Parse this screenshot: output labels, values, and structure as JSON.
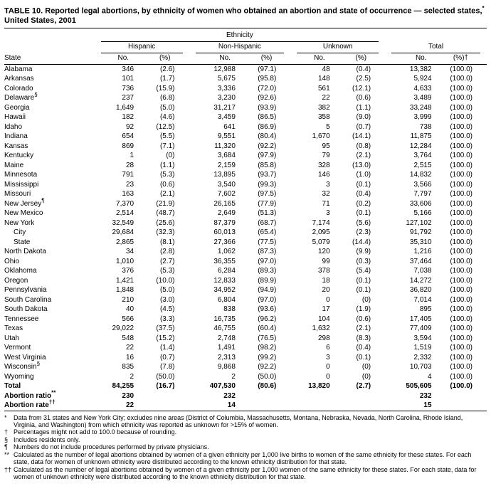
{
  "title": {
    "part1": "TABLE 10. Reported legal abortions, by ethnicity of women who obtained an abortion and state of occurrence — selected states,",
    "sup": "*",
    "part2": " United States, 2001"
  },
  "header": {
    "ethnicity_label": "Ethnicity",
    "state_label": "State",
    "groups": [
      "Hispanic",
      "Non-Hispanic",
      "Unknown",
      "Total"
    ],
    "no_label": "No.",
    "pct_label": "(%)",
    "total_pct_label": "(%)†"
  },
  "table": {
    "rows": [
      {
        "state": "Alabama",
        "cells": [
          "346",
          "(2.6)",
          "12,988",
          "(97.1)",
          "48",
          "(0.4)",
          "13,382",
          "(100.0)"
        ]
      },
      {
        "state": "Arkansas",
        "cells": [
          "101",
          "(1.7)",
          "5,675",
          "(95.8)",
          "148",
          "(2.5)",
          "5,924",
          "(100.0)"
        ]
      },
      {
        "state": "Colorado",
        "cells": [
          "736",
          "(15.9)",
          "3,336",
          "(72.0)",
          "561",
          "(12.1)",
          "4,633",
          "(100.0)"
        ]
      },
      {
        "state": "Delaware",
        "sup": "§",
        "cells": [
          "237",
          "(6.8)",
          "3,230",
          "(92.6)",
          "22",
          "(0.6)",
          "3,489",
          "(100.0)"
        ]
      },
      {
        "state": "Georgia",
        "cells": [
          "1,649",
          "(5.0)",
          "31,217",
          "(93.9)",
          "382",
          "(1.1)",
          "33,248",
          "(100.0)"
        ]
      },
      {
        "state": "Hawaii",
        "cells": [
          "182",
          "(4.6)",
          "3,459",
          "(86.5)",
          "358",
          "(9.0)",
          "3,999",
          "(100.0)"
        ]
      },
      {
        "state": "Idaho",
        "cells": [
          "92",
          "(12.5)",
          "641",
          "(86.9)",
          "5",
          "(0.7)",
          "738",
          "(100.0)"
        ]
      },
      {
        "state": "Indiana",
        "cells": [
          "654",
          "(5.5)",
          "9,551",
          "(80.4)",
          "1,670",
          "(14.1)",
          "11,875",
          "(100.0)"
        ]
      },
      {
        "state": "Kansas",
        "cells": [
          "869",
          "(7.1)",
          "11,320",
          "(92.2)",
          "95",
          "(0.8)",
          "12,284",
          "(100.0)"
        ]
      },
      {
        "state": "Kentucky",
        "cells": [
          "1",
          "(0)",
          "3,684",
          "(97.9)",
          "79",
          "(2.1)",
          "3,764",
          "(100.0)"
        ]
      },
      {
        "state": "Maine",
        "cells": [
          "28",
          "(1.1)",
          "2,159",
          "(85.8)",
          "328",
          "(13.0)",
          "2,515",
          "(100.0)"
        ]
      },
      {
        "state": "Minnesota",
        "cells": [
          "791",
          "(5.3)",
          "13,895",
          "(93.7)",
          "146",
          "(1.0)",
          "14,832",
          "(100.0)"
        ]
      },
      {
        "state": "Mississippi",
        "cells": [
          "23",
          "(0.6)",
          "3,540",
          "(99.3)",
          "3",
          "(0.1)",
          "3,566",
          "(100.0)"
        ]
      },
      {
        "state": "Missouri",
        "cells": [
          "163",
          "(2.1)",
          "7,602",
          "(97.5)",
          "32",
          "(0.4)",
          "7,797",
          "(100.0)"
        ]
      },
      {
        "state": "New Jersey",
        "sup": "¶",
        "cells": [
          "7,370",
          "(21.9)",
          "26,165",
          "(77.9)",
          "71",
          "(0.2)",
          "33,606",
          "(100.0)"
        ]
      },
      {
        "state": "New Mexico",
        "cells": [
          "2,514",
          "(48.7)",
          "2,649",
          "(51.3)",
          "3",
          "(0.1)",
          "5,166",
          "(100.0)"
        ]
      },
      {
        "state": "New York",
        "cells": [
          "32,549",
          "(25.6)",
          "87,379",
          "(68.7)",
          "7,174",
          "(5.6)",
          "127,102",
          "(100.0)"
        ]
      },
      {
        "state": "City",
        "indent": true,
        "cells": [
          "29,684",
          "(32.3)",
          "60,013",
          "(65.4)",
          "2,095",
          "(2.3)",
          "91,792",
          "(100.0)"
        ]
      },
      {
        "state": "State",
        "indent": true,
        "cells": [
          "2,865",
          "(8.1)",
          "27,366",
          "(77.5)",
          "5,079",
          "(14.4)",
          "35,310",
          "(100.0)"
        ]
      },
      {
        "state": "North Dakota",
        "cells": [
          "34",
          "(2.8)",
          "1,062",
          "(87.3)",
          "120",
          "(9.9)",
          "1,216",
          "(100.0)"
        ]
      },
      {
        "state": "Ohio",
        "cells": [
          "1,010",
          "(2.7)",
          "36,355",
          "(97.0)",
          "99",
          "(0.3)",
          "37,464",
          "(100.0)"
        ]
      },
      {
        "state": "Oklahoma",
        "cells": [
          "376",
          "(5.3)",
          "6,284",
          "(89.3)",
          "378",
          "(5.4)",
          "7,038",
          "(100.0)"
        ]
      },
      {
        "state": "Oregon",
        "cells": [
          "1,421",
          "(10.0)",
          "12,833",
          "(89.9)",
          "18",
          "(0.1)",
          "14,272",
          "(100.0)"
        ]
      },
      {
        "state": "Pennsylvania",
        "cells": [
          "1,848",
          "(5.0)",
          "34,952",
          "(94.9)",
          "20",
          "(0.1)",
          "36,820",
          "(100.0)"
        ]
      },
      {
        "state": "South Carolina",
        "cells": [
          "210",
          "(3.0)",
          "6,804",
          "(97.0)",
          "0",
          "(0)",
          "7,014",
          "(100.0)"
        ]
      },
      {
        "state": "South Dakota",
        "cells": [
          "40",
          "(4.5)",
          "838",
          "(93.6)",
          "17",
          "(1.9)",
          "895",
          "(100.0)"
        ]
      },
      {
        "state": "Tennessee",
        "cells": [
          "566",
          "(3.3)",
          "16,735",
          "(96.2)",
          "104",
          "(0.6)",
          "17,405",
          "(100.0)"
        ]
      },
      {
        "state": "Texas",
        "cells": [
          "29,022",
          "(37.5)",
          "46,755",
          "(60.4)",
          "1,632",
          "(2.1)",
          "77,409",
          "(100.0)"
        ]
      },
      {
        "state": "Utah",
        "cells": [
          "548",
          "(15.2)",
          "2,748",
          "(76.5)",
          "298",
          "(8.3)",
          "3,594",
          "(100.0)"
        ]
      },
      {
        "state": "Vermont",
        "cells": [
          "22",
          "(1.4)",
          "1,491",
          "(98.2)",
          "6",
          "(0.4)",
          "1,519",
          "(100.0)"
        ]
      },
      {
        "state": "West Virginia",
        "cells": [
          "16",
          "(0.7)",
          "2,313",
          "(99.2)",
          "3",
          "(0.1)",
          "2,332",
          "(100.0)"
        ]
      },
      {
        "state": "Wisconsin",
        "sup": "§",
        "cells": [
          "835",
          "(7.8)",
          "9,868",
          "(92.2)",
          "0",
          "(0)",
          "10,703",
          "(100.0)"
        ]
      },
      {
        "state": "Wyoming",
        "cells": [
          "2",
          "(50.0)",
          "2",
          "(50.0)",
          "0",
          "(0)",
          "4",
          "(100.0)"
        ]
      },
      {
        "state": "Total",
        "bold": true,
        "cells": [
          "84,255",
          "(16.7)",
          "407,530",
          "(80.6)",
          "13,820",
          "(2.7)",
          "505,605",
          "(100.0)"
        ]
      },
      {
        "state": "Abortion ratio",
        "sup": "**",
        "bold": true,
        "cells": [
          "230",
          "",
          "232",
          "",
          "",
          "",
          "232",
          ""
        ]
      },
      {
        "state": "Abortion rate",
        "sup": "††",
        "bold": true,
        "cells": [
          "22",
          "",
          "14",
          "",
          "",
          "",
          "15",
          ""
        ]
      }
    ]
  },
  "footnotes": [
    {
      "symbol": "*",
      "text": "Data from 31 states and New York City; excludes nine areas (District of Columbia, Massachusetts, Montana, Nebraska, Nevada, North Carolina, Rhode Island, Virginia, and Washington) from which ethnicity was reported as unknown for >15% of women."
    },
    {
      "symbol": "†",
      "text": "Percentages might not add to 100.0 because of rounding."
    },
    {
      "symbol": "§",
      "text": "Includes residents only."
    },
    {
      "symbol": "¶",
      "text": "Numbers do not include procedures performed by private physicians."
    },
    {
      "symbol": "**",
      "text": "Calculated as the number of legal abortions obtained by women of a given ethnicity per 1,000 live births to women of the same ethnicity for these states. For each state, data for women of unknown ethnicity were distributed according to the known ethnicity distribution for that state."
    },
    {
      "symbol": "††",
      "text": "Calculated as the number of legal abortions obtained by women of a given ethnicity per 1,000 women of the same ethnicity for these states. For each state, data for women of unknown ethnicity were distributed according to the known ethnicity distribution for that state."
    }
  ]
}
